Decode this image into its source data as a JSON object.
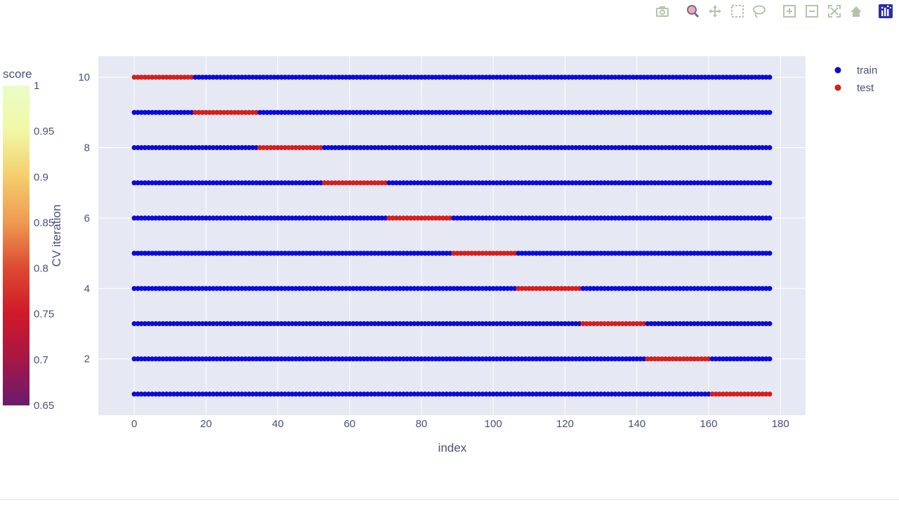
{
  "modebar": {
    "buttons": [
      {
        "name": "camera-icon",
        "label": "Download plot as a png"
      },
      {
        "name": "zoom-icon",
        "label": "Zoom"
      },
      {
        "name": "pan-icon",
        "label": "Pan"
      },
      {
        "name": "box-select-icon",
        "label": "Box Select"
      },
      {
        "name": "lasso-select-icon",
        "label": "Lasso Select"
      },
      {
        "name": "zoom-in-icon",
        "label": "Zoom in"
      },
      {
        "name": "zoom-out-icon",
        "label": "Zoom out"
      },
      {
        "name": "autoscale-icon",
        "label": "Autoscale"
      },
      {
        "name": "reset-axes-icon",
        "label": "Reset axes"
      },
      {
        "name": "plotly-logo-icon",
        "label": "Produced with Plotly"
      }
    ]
  },
  "chart_data": {
    "type": "scatter",
    "title": "",
    "xlabel": "index",
    "ylabel": "CV iteration",
    "xlim": [
      -10,
      187
    ],
    "ylim": [
      0.4,
      10.6
    ],
    "xticks": [
      0,
      20,
      40,
      60,
      80,
      100,
      120,
      140,
      160,
      180
    ],
    "yticks": [
      2,
      4,
      6,
      8,
      10
    ],
    "n_samples": 178,
    "grid": true,
    "legend_position": "top-right",
    "series": [
      {
        "name": "train",
        "color": "#0a0adc"
      },
      {
        "name": "test",
        "color": "#d41f1f"
      }
    ],
    "folds": [
      {
        "iteration": 1,
        "test_start": 161,
        "test_end": 177
      },
      {
        "iteration": 2,
        "test_start": 143,
        "test_end": 160
      },
      {
        "iteration": 3,
        "test_start": 125,
        "test_end": 142
      },
      {
        "iteration": 4,
        "test_start": 107,
        "test_end": 124
      },
      {
        "iteration": 5,
        "test_start": 89,
        "test_end": 106
      },
      {
        "iteration": 6,
        "test_start": 71,
        "test_end": 88
      },
      {
        "iteration": 7,
        "test_start": 53,
        "test_end": 70
      },
      {
        "iteration": 8,
        "test_start": 35,
        "test_end": 52
      },
      {
        "iteration": 9,
        "test_start": 17,
        "test_end": 34
      },
      {
        "iteration": 10,
        "test_start": 0,
        "test_end": 16
      }
    ],
    "colorbar": {
      "title": "score",
      "range": [
        0.65,
        1
      ],
      "ticks": [
        0.65,
        0.7,
        0.75,
        0.8,
        0.85,
        0.9,
        0.95,
        1
      ],
      "tick_labels": [
        "0.65",
        "0.7",
        "0.75",
        "0.8",
        "0.85",
        "0.9",
        "0.95",
        "1"
      ],
      "colorscale": [
        "#6a1a6e",
        "#a51845",
        "#d0192a",
        "#dc4a32",
        "#ee9a52",
        "#f4cd6e",
        "#f2f7a4",
        "#e9fdc9"
      ]
    }
  }
}
